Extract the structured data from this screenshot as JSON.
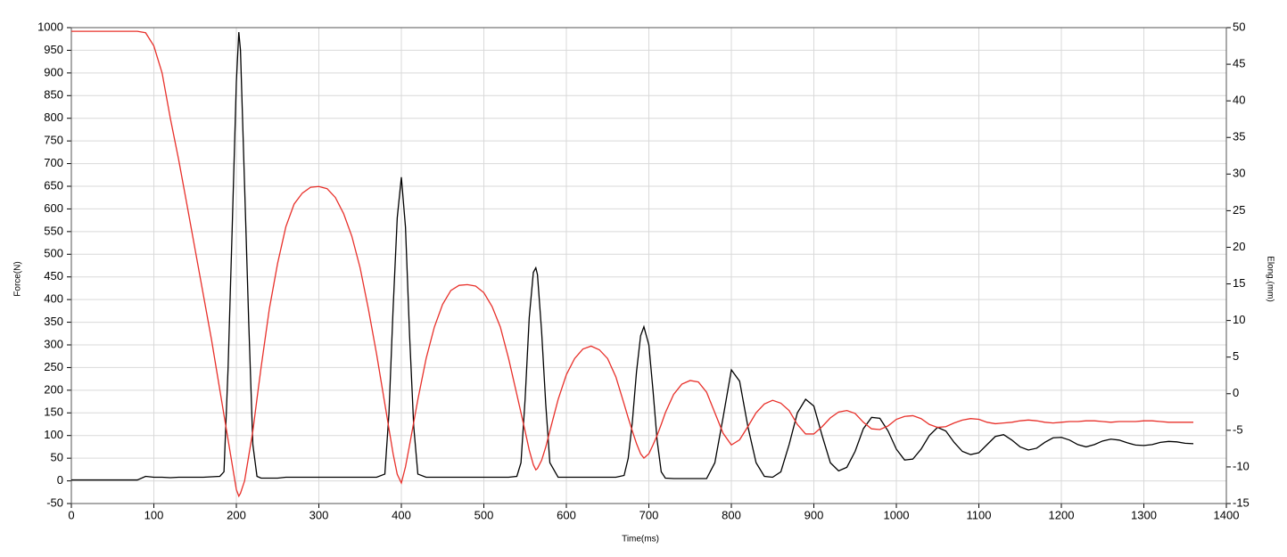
{
  "chart_data": {
    "type": "line",
    "x_label": "Time(ms)",
    "y_label": "Force(N)",
    "y2_label": "Elong.(mm)",
    "xlim": [
      0,
      1400
    ],
    "xticks": [
      0,
      100,
      200,
      300,
      400,
      500,
      600,
      700,
      800,
      900,
      1000,
      1100,
      1200,
      1300,
      1400
    ],
    "ylim": [
      -50,
      1000
    ],
    "yticks": [
      -50,
      0,
      50,
      100,
      150,
      200,
      250,
      300,
      350,
      400,
      450,
      500,
      550,
      600,
      650,
      700,
      750,
      800,
      850,
      900,
      950,
      1000
    ],
    "y2lim": [
      -15,
      50
    ],
    "y2ticks": [
      -15,
      -10,
      -5,
      0,
      5,
      10,
      15,
      20,
      25,
      30,
      35,
      40,
      45,
      50
    ],
    "grid": true,
    "x": [
      0,
      10,
      20,
      30,
      40,
      50,
      60,
      70,
      80,
      90,
      100,
      110,
      120,
      130,
      140,
      150,
      160,
      170,
      180,
      185,
      190,
      195,
      200,
      203,
      205,
      210,
      215,
      220,
      225,
      230,
      240,
      250,
      260,
      270,
      280,
      290,
      300,
      310,
      320,
      330,
      340,
      350,
      360,
      370,
      380,
      385,
      390,
      395,
      400,
      405,
      410,
      415,
      420,
      430,
      440,
      450,
      460,
      470,
      480,
      490,
      500,
      510,
      520,
      530,
      540,
      545,
      550,
      555,
      560,
      563,
      565,
      570,
      575,
      580,
      590,
      600,
      610,
      620,
      630,
      640,
      650,
      660,
      670,
      675,
      680,
      685,
      690,
      694,
      700,
      705,
      710,
      715,
      720,
      730,
      740,
      750,
      760,
      770,
      780,
      790,
      800,
      810,
      820,
      830,
      840,
      850,
      860,
      870,
      880,
      890,
      900,
      910,
      920,
      930,
      940,
      950,
      960,
      970,
      980,
      990,
      1000,
      1010,
      1020,
      1030,
      1040,
      1050,
      1060,
      1070,
      1080,
      1090,
      1100,
      1110,
      1120,
      1130,
      1140,
      1150,
      1160,
      1170,
      1180,
      1190,
      1200,
      1210,
      1220,
      1230,
      1240,
      1250,
      1260,
      1270,
      1280,
      1290,
      1300,
      1310,
      1320,
      1330,
      1340,
      1350,
      1360
    ],
    "series": [
      {
        "color": "#000000",
        "values": [
          2,
          2,
          2,
          2,
          2,
          2,
          2,
          2,
          2,
          10,
          8,
          8,
          7,
          8,
          8,
          8,
          8,
          9,
          10,
          20,
          250,
          560,
          880,
          990,
          950,
          650,
          350,
          80,
          10,
          6,
          6,
          6,
          8,
          8,
          8,
          8,
          8,
          8,
          8,
          8,
          8,
          8,
          8,
          8,
          15,
          150,
          380,
          580,
          670,
          560,
          320,
          120,
          15,
          8,
          8,
          8,
          8,
          8,
          8,
          8,
          8,
          8,
          8,
          8,
          10,
          40,
          180,
          360,
          460,
          470,
          455,
          330,
          170,
          40,
          8,
          8,
          8,
          8,
          8,
          8,
          8,
          8,
          12,
          50,
          130,
          240,
          320,
          340,
          300,
          200,
          90,
          20,
          6,
          5,
          5,
          5,
          5,
          5,
          40,
          140,
          245,
          220,
          120,
          40,
          10,
          8,
          20,
          80,
          150,
          180,
          165,
          100,
          40,
          22,
          30,
          65,
          115,
          140,
          138,
          110,
          70,
          46,
          48,
          70,
          100,
          118,
          110,
          85,
          65,
          58,
          62,
          80,
          98,
          102,
          90,
          75,
          68,
          72,
          85,
          95,
          96,
          90,
          80,
          75,
          80,
          88,
          92,
          90,
          84,
          79,
          78,
          80,
          85,
          87,
          86,
          83,
          82
        ]
      },
      {
        "color": "#e8302a",
        "axis": "y2",
        "values": [
          49.5,
          49.5,
          49.5,
          49.5,
          49.5,
          49.5,
          49.5,
          49.5,
          49.5,
          49.3,
          47.5,
          43.8,
          37.6,
          32.0,
          25.9,
          19.7,
          13.5,
          7.3,
          0.5,
          -2.9,
          -6.3,
          -9.7,
          -13.1,
          -14.0,
          -13.6,
          -11.9,
          -8.5,
          -5.1,
          -0.7,
          3.6,
          11.6,
          17.8,
          22.8,
          25.9,
          27.4,
          28.2,
          28.3,
          28.0,
          26.8,
          24.6,
          21.5,
          17.2,
          11.6,
          5.4,
          -1.4,
          -4.8,
          -8.2,
          -11.0,
          -12.2,
          -10.0,
          -7.0,
          -3.9,
          -0.8,
          4.8,
          9.1,
          12.2,
          14.1,
          14.8,
          14.9,
          14.7,
          13.8,
          11.9,
          9.1,
          4.8,
          -0.1,
          -2.6,
          -5.1,
          -7.7,
          -9.7,
          -10.4,
          -10.2,
          -9.1,
          -7.3,
          -5.1,
          -0.8,
          2.6,
          4.8,
          6.1,
          6.5,
          6.0,
          4.8,
          2.3,
          -1.4,
          -3.3,
          -5.1,
          -6.8,
          -8.2,
          -8.8,
          -8.2,
          -7.0,
          -5.7,
          -4.2,
          -2.6,
          -0.1,
          1.3,
          1.8,
          1.6,
          0.2,
          -2.6,
          -5.4,
          -7.0,
          -6.3,
          -4.5,
          -2.6,
          -1.4,
          -0.9,
          -1.3,
          -2.3,
          -4.2,
          -5.5,
          -5.5,
          -4.5,
          -3.3,
          -2.5,
          -2.3,
          -2.7,
          -3.9,
          -4.8,
          -4.9,
          -4.4,
          -3.5,
          -3.1,
          -3.0,
          -3.4,
          -4.2,
          -4.6,
          -4.5,
          -4.0,
          -3.6,
          -3.4,
          -3.5,
          -3.9,
          -4.1,
          -4.0,
          -3.9,
          -3.7,
          -3.6,
          -3.7,
          -3.9,
          -4.0,
          -3.9,
          -3.8,
          -3.8,
          -3.7,
          -3.7,
          -3.8,
          -3.9,
          -3.8,
          -3.8,
          -3.8,
          -3.7,
          -3.7,
          -3.8,
          -3.9,
          -3.9,
          -3.9,
          -3.9
        ]
      }
    ]
  }
}
